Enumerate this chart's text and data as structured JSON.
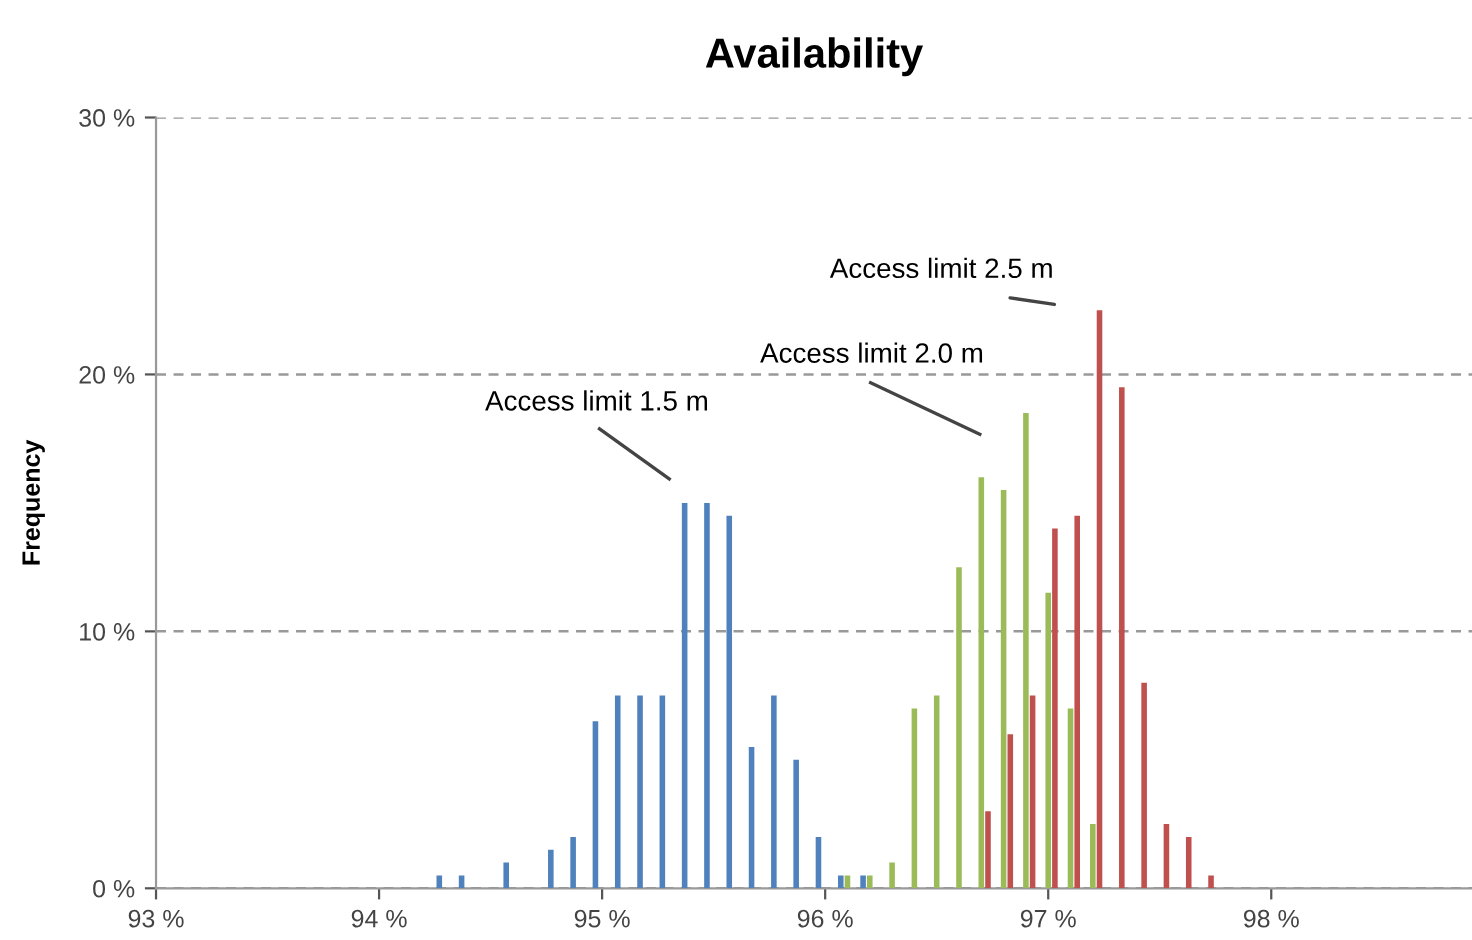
{
  "chart_data": {
    "type": "bar",
    "title": "Availability",
    "ylabel": "Frequency",
    "series": [
      {
        "color": "#4f81bd",
        "x": [
          94.3,
          94.4,
          94.6,
          94.8,
          94.9,
          95.0,
          95.1,
          95.2,
          95.3,
          95.4,
          95.5,
          95.6,
          95.7,
          95.8,
          95.9,
          96.0,
          96.1,
          96.2
        ],
        "values": [
          0.5,
          0.5,
          1.0,
          1.5,
          2.0,
          6.5,
          7.5,
          7.5,
          7.5,
          15.0,
          15.0,
          14.5,
          5.5,
          7.5,
          5.0,
          2.0,
          0.5,
          0.5
        ]
      },
      {
        "color": "#9bbb59",
        "x": [
          96.1,
          96.2,
          96.3,
          96.4,
          96.5,
          96.6,
          96.7,
          96.8,
          96.9,
          97.0,
          97.1,
          97.2
        ],
        "values": [
          0.5,
          0.5,
          1.0,
          7.0,
          7.5,
          12.5,
          16.0,
          15.5,
          18.5,
          11.5,
          7.0,
          2.5
        ]
      },
      {
        "color": "#c0504d",
        "x": [
          96.7,
          96.8,
          96.9,
          97.0,
          97.1,
          97.2,
          97.3,
          97.4,
          97.5,
          97.6,
          97.7
        ],
        "values": [
          3.0,
          6.0,
          7.5,
          14.0,
          14.5,
          22.5,
          19.5,
          8.0,
          2.5,
          2.0,
          0.5
        ]
      }
    ],
    "xlim": [
      93,
      98.9
    ],
    "xticks": [
      {
        "value": 93,
        "label": "93 %"
      },
      {
        "value": 94,
        "label": "94 %"
      },
      {
        "value": 95,
        "label": "95 %"
      },
      {
        "value": 96,
        "label": "96 %"
      },
      {
        "value": 97,
        "label": "97 %"
      },
      {
        "value": 98,
        "label": "98 %"
      }
    ],
    "ylim": [
      0,
      30
    ],
    "yticks": [
      {
        "value": 0,
        "label": "0 %"
      },
      {
        "value": 10,
        "label": "10 %"
      },
      {
        "value": 20,
        "label": "20 %"
      },
      {
        "value": 30,
        "label": "30 %"
      }
    ],
    "grid": "y",
    "legend": false,
    "annotations": [
      "Access limit 1.5 m",
      "Access limit 2.0 m",
      {
        "text": "Access limit 2.5 m",
        "x": 97.2,
        "y": 22.5
      }
    ]
  }
}
